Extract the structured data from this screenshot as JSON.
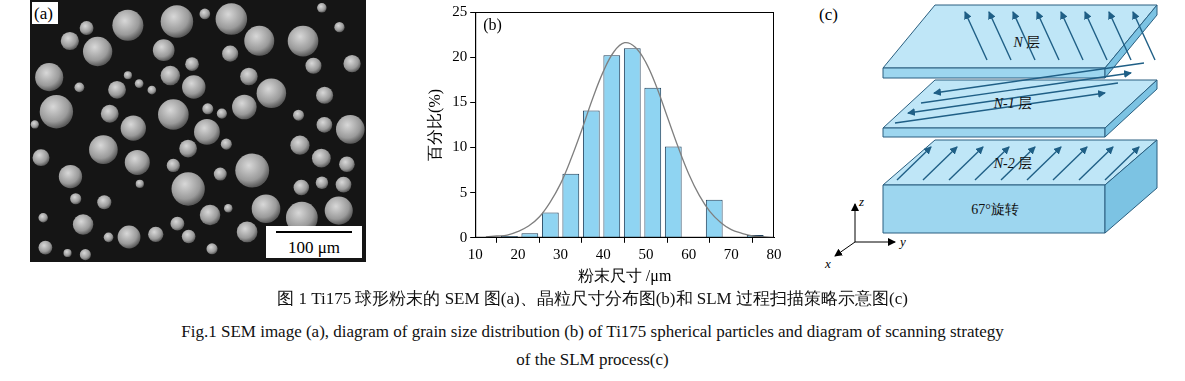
{
  "sem_image": {
    "label": "(a)",
    "scale_bar": "100 μm"
  },
  "chart_data": {
    "type": "histogram",
    "label": "(b)",
    "x_label": "粉末尺寸 /μm",
    "y_label": "百分比(%)",
    "bins": [
      15.6,
      20.4,
      25.2,
      30,
      34.8,
      39.6,
      44.4,
      49.2,
      54,
      58.8,
      63.6,
      68.4,
      73.2,
      78
    ],
    "counts": [
      0.2,
      0.5,
      2.8,
      7.1,
      14.1,
      20.2,
      21,
      16.6,
      10.1,
      0,
      4.2,
      0,
      0.3
    ],
    "color": "#8fd4f2",
    "xlim": [
      10,
      80
    ],
    "xticks": [
      10,
      20,
      30,
      40,
      50,
      60,
      70,
      80
    ],
    "ylim": [
      0,
      25
    ],
    "yticks": [
      0,
      5,
      10,
      15,
      20,
      25
    ],
    "grid": false,
    "fit_curve": {
      "type": "line",
      "color": "#7f7f7f",
      "x": [
        12.5,
        15,
        17.5,
        20,
        22.5,
        25,
        27.5,
        30,
        32.5,
        35,
        37.5,
        40,
        42.5,
        45,
        47.5,
        50,
        52.5,
        55,
        57.5,
        60,
        62.5,
        65,
        67.5,
        70,
        72.5,
        75,
        77.5,
        80
      ],
      "values": [
        0.1,
        0.2,
        0.3,
        0.7,
        1.3,
        2.3,
        3.9,
        6.0,
        8.8,
        12.0,
        15.4,
        18.4,
        20.6,
        21.6,
        21.1,
        19.4,
        16.7,
        13.4,
        10.1,
        7.1,
        4.7,
        2.9,
        1.7,
        0.9,
        0.5,
        0.2,
        0.1,
        0.0
      ]
    }
  },
  "scan_strategy": {
    "label": "(c)",
    "layers": [
      "N 层",
      "N-1 层",
      "N-2 层"
    ],
    "base_label": "67°旋转",
    "axes": [
      "z",
      "y",
      "x"
    ]
  },
  "caption": {
    "zh": "图 1  Ti175 球形粉末的 SEM 图(a)、晶粒尺寸分布图(b)和 SLM 过程扫描策略示意图(c)",
    "en": [
      "Fig.1  SEM image (a), diagram of grain size distribution (b) of Ti175 spherical particles and diagram of scanning strategy",
      "of the SLM process(c)"
    ]
  }
}
